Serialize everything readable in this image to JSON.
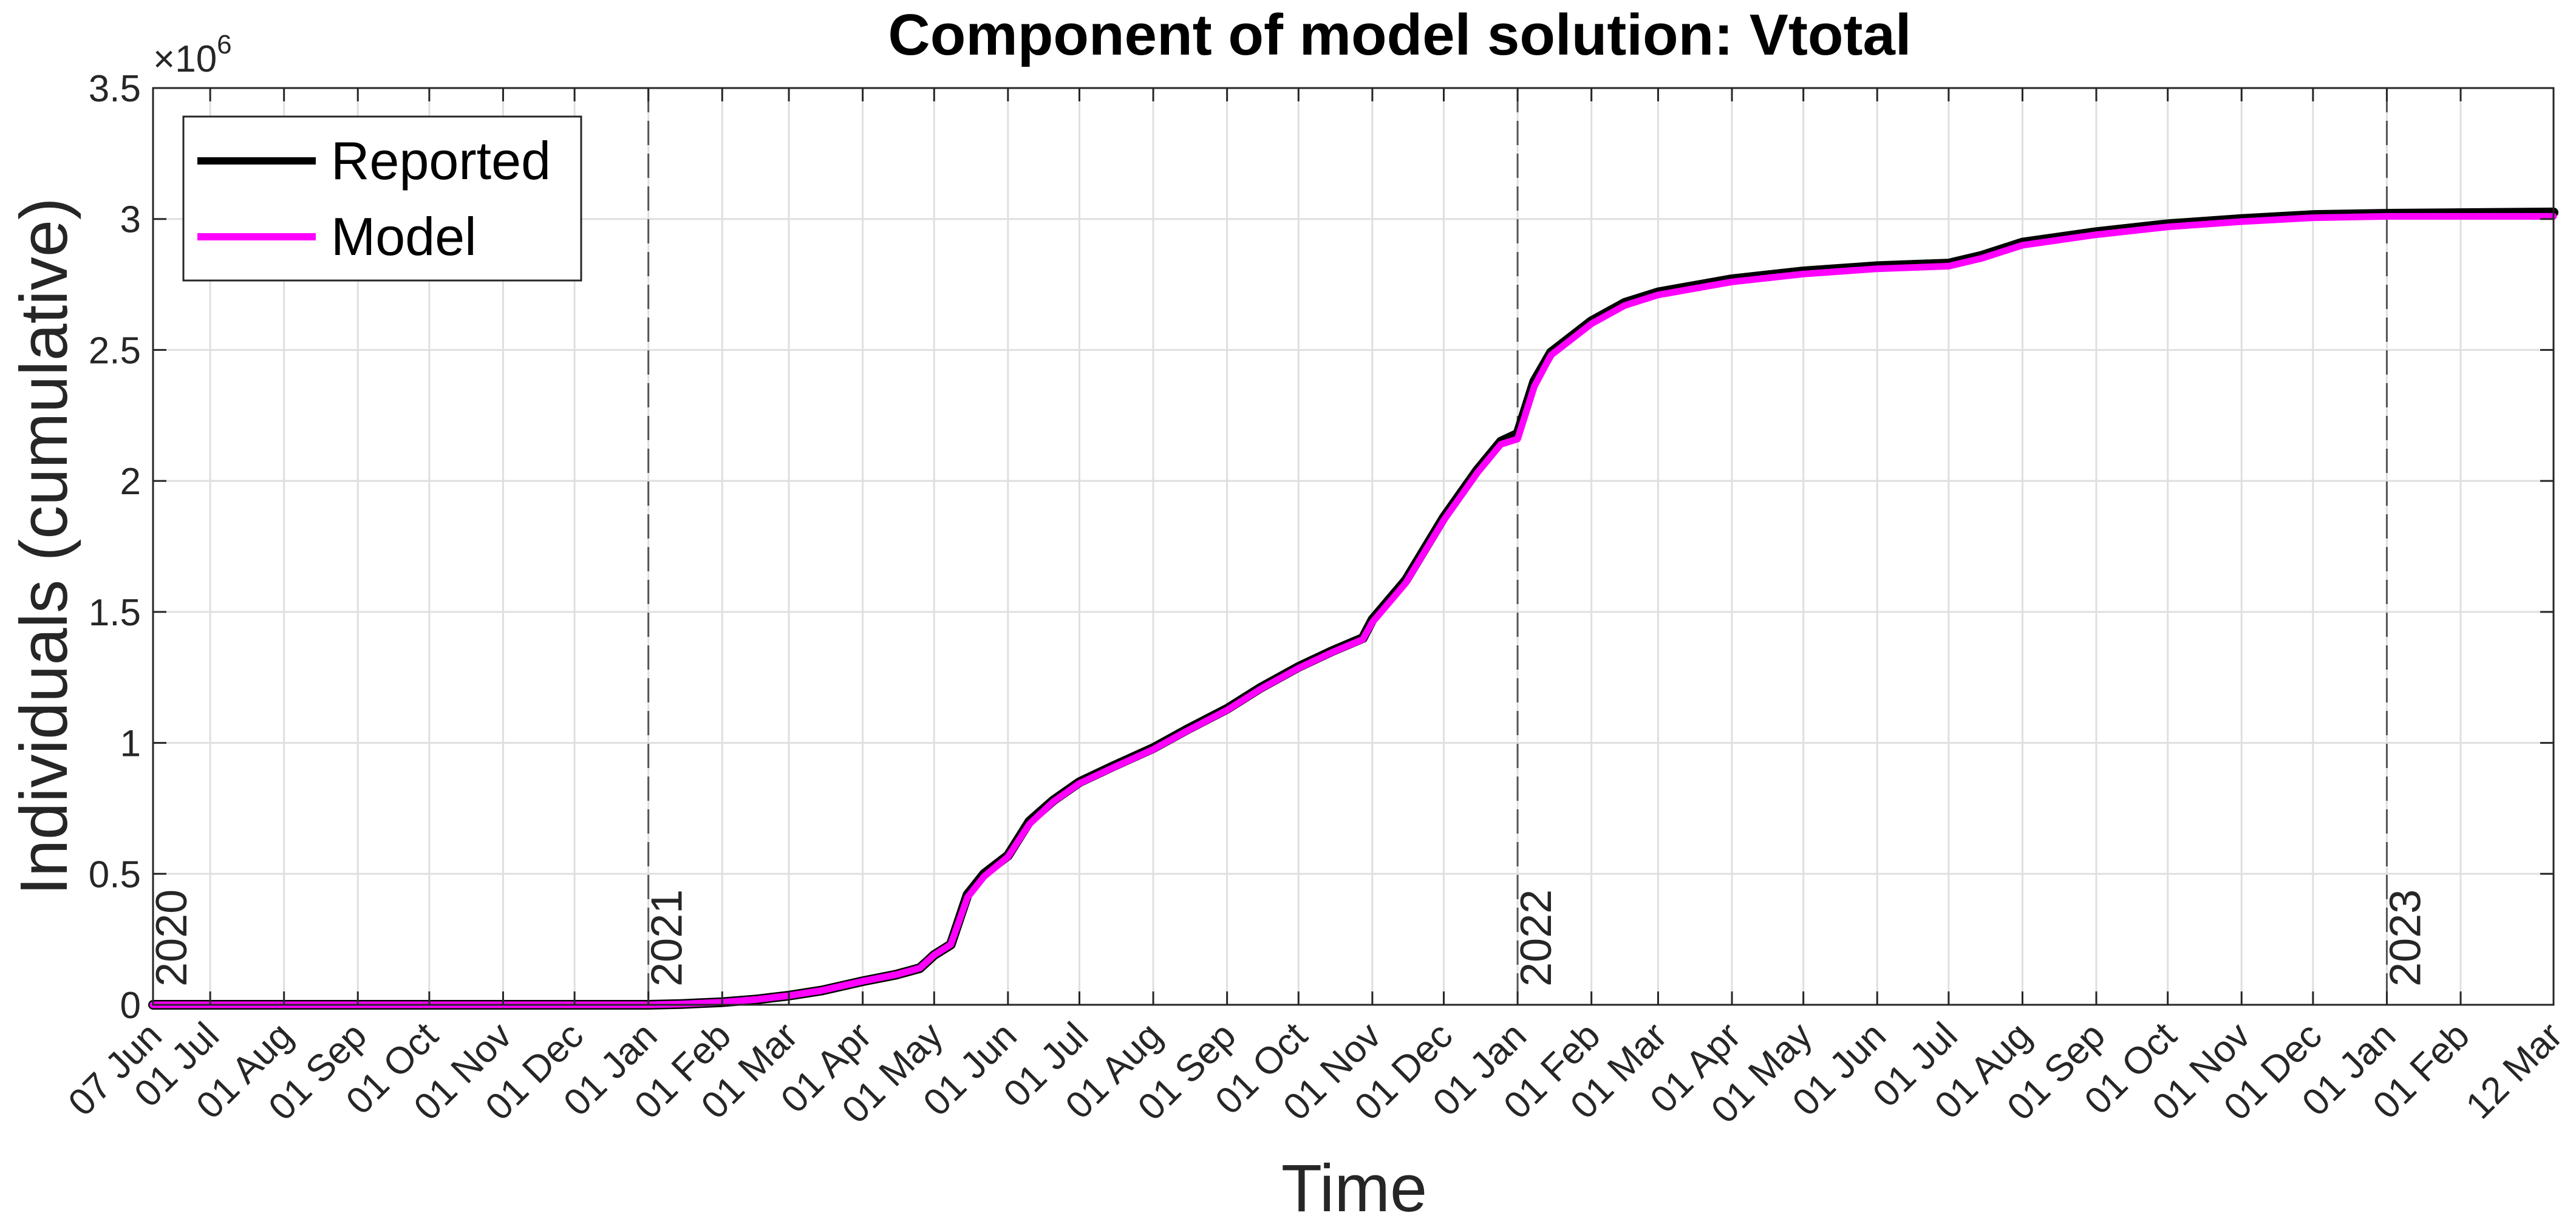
{
  "chart_data": {
    "type": "line",
    "title": "Component of model solution: Vtotal",
    "xlabel": "Time",
    "ylabel": "Individuals (cumulative)",
    "y_exponent_label": "×10",
    "y_exponent_power": "6",
    "y_multiplier": 1000000,
    "xlim": [
      "2020-06-07",
      "2023-03-12"
    ],
    "ylim": [
      0,
      3.5
    ],
    "grid": true,
    "legend_location": "top-left",
    "x_ticks": [
      {
        "date": "2020-06-07",
        "label": "07 Jun"
      },
      {
        "date": "2020-07-01",
        "label": "01 Jul"
      },
      {
        "date": "2020-08-01",
        "label": "01 Aug"
      },
      {
        "date": "2020-09-01",
        "label": "01 Sep"
      },
      {
        "date": "2020-10-01",
        "label": "01 Oct"
      },
      {
        "date": "2020-11-01",
        "label": "01 Nov"
      },
      {
        "date": "2020-12-01",
        "label": "01 Dec"
      },
      {
        "date": "2021-01-01",
        "label": "01 Jan"
      },
      {
        "date": "2021-02-01",
        "label": "01 Feb"
      },
      {
        "date": "2021-03-01",
        "label": "01 Mar"
      },
      {
        "date": "2021-04-01",
        "label": "01 Apr"
      },
      {
        "date": "2021-05-01",
        "label": "01 May"
      },
      {
        "date": "2021-06-01",
        "label": "01 Jun"
      },
      {
        "date": "2021-07-01",
        "label": "01 Jul"
      },
      {
        "date": "2021-08-01",
        "label": "01 Aug"
      },
      {
        "date": "2021-09-01",
        "label": "01 Sep"
      },
      {
        "date": "2021-10-01",
        "label": "01 Oct"
      },
      {
        "date": "2021-11-01",
        "label": "01 Nov"
      },
      {
        "date": "2021-12-01",
        "label": "01 Dec"
      },
      {
        "date": "2022-01-01",
        "label": "01 Jan"
      },
      {
        "date": "2022-02-01",
        "label": "01 Feb"
      },
      {
        "date": "2022-03-01",
        "label": "01 Mar"
      },
      {
        "date": "2022-04-01",
        "label": "01 Apr"
      },
      {
        "date": "2022-05-01",
        "label": "01 May"
      },
      {
        "date": "2022-06-01",
        "label": "01 Jun"
      },
      {
        "date": "2022-07-01",
        "label": "01 Jul"
      },
      {
        "date": "2022-08-01",
        "label": "01 Aug"
      },
      {
        "date": "2022-09-01",
        "label": "01 Sep"
      },
      {
        "date": "2022-10-01",
        "label": "01 Oct"
      },
      {
        "date": "2022-11-01",
        "label": "01 Nov"
      },
      {
        "date": "2022-12-01",
        "label": "01 Dec"
      },
      {
        "date": "2023-01-01",
        "label": "01 Jan"
      },
      {
        "date": "2023-02-01",
        "label": "01 Feb"
      },
      {
        "date": "2023-03-12",
        "label": "12 Mar"
      }
    ],
    "y_ticks": [
      {
        "value": 0,
        "label": "0"
      },
      {
        "value": 0.5,
        "label": "0.5"
      },
      {
        "value": 1,
        "label": "1"
      },
      {
        "value": 1.5,
        "label": "1.5"
      },
      {
        "value": 2,
        "label": "2"
      },
      {
        "value": 2.5,
        "label": "2.5"
      },
      {
        "value": 3,
        "label": "3"
      },
      {
        "value": 3.5,
        "label": "3.5"
      }
    ],
    "year_markers": [
      {
        "date": "2020-06-07",
        "label": "2020",
        "line": false
      },
      {
        "date": "2021-01-01",
        "label": "2021",
        "line": true
      },
      {
        "date": "2022-01-01",
        "label": "2022",
        "line": true
      },
      {
        "date": "2023-01-01",
        "label": "2023",
        "line": true
      }
    ],
    "series": [
      {
        "name": "Reported",
        "color": "#000000",
        "points": [
          [
            "2020-06-07",
            0
          ],
          [
            "2021-01-01",
            0
          ],
          [
            "2021-01-15",
            0.003
          ],
          [
            "2021-02-01",
            0.01
          ],
          [
            "2021-02-15",
            0.02
          ],
          [
            "2021-03-01",
            0.035
          ],
          [
            "2021-03-15",
            0.055
          ],
          [
            "2021-04-01",
            0.09
          ],
          [
            "2021-04-15",
            0.115
          ],
          [
            "2021-04-25",
            0.14
          ],
          [
            "2021-05-01",
            0.19
          ],
          [
            "2021-05-08",
            0.23
          ],
          [
            "2021-05-15",
            0.42
          ],
          [
            "2021-05-22",
            0.5
          ],
          [
            "2021-06-01",
            0.57
          ],
          [
            "2021-06-10",
            0.7
          ],
          [
            "2021-06-20",
            0.78
          ],
          [
            "2021-07-01",
            0.85
          ],
          [
            "2021-07-15",
            0.91
          ],
          [
            "2021-08-01",
            0.98
          ],
          [
            "2021-08-15",
            1.05
          ],
          [
            "2021-09-01",
            1.13
          ],
          [
            "2021-09-15",
            1.21
          ],
          [
            "2021-10-01",
            1.29
          ],
          [
            "2021-10-15",
            1.35
          ],
          [
            "2021-10-28",
            1.4
          ],
          [
            "2021-11-01",
            1.47
          ],
          [
            "2021-11-15",
            1.62
          ],
          [
            "2021-12-01",
            1.86
          ],
          [
            "2021-12-15",
            2.04
          ],
          [
            "2021-12-25",
            2.15
          ],
          [
            "2022-01-01",
            2.18
          ],
          [
            "2022-01-08",
            2.38
          ],
          [
            "2022-01-15",
            2.49
          ],
          [
            "2022-02-01",
            2.61
          ],
          [
            "2022-02-15",
            2.68
          ],
          [
            "2022-03-01",
            2.72
          ],
          [
            "2022-04-01",
            2.77
          ],
          [
            "2022-05-01",
            2.8
          ],
          [
            "2022-06-01",
            2.82
          ],
          [
            "2022-07-01",
            2.83
          ],
          [
            "2022-07-15",
            2.86
          ],
          [
            "2022-08-01",
            2.91
          ],
          [
            "2022-09-01",
            2.95
          ],
          [
            "2022-10-01",
            2.98
          ],
          [
            "2022-11-01",
            3.0
          ],
          [
            "2022-12-01",
            3.015
          ],
          [
            "2023-01-01",
            3.02
          ],
          [
            "2023-03-12",
            3.025
          ]
        ]
      },
      {
        "name": "Model",
        "color": "#ff00ff",
        "points": [
          [
            "2020-06-07",
            0
          ],
          [
            "2021-01-01",
            0
          ],
          [
            "2021-01-15",
            0.003
          ],
          [
            "2021-02-01",
            0.01
          ],
          [
            "2021-02-15",
            0.02
          ],
          [
            "2021-03-01",
            0.035
          ],
          [
            "2021-03-15",
            0.055
          ],
          [
            "2021-04-01",
            0.09
          ],
          [
            "2021-04-15",
            0.115
          ],
          [
            "2021-04-25",
            0.14
          ],
          [
            "2021-05-01",
            0.19
          ],
          [
            "2021-05-08",
            0.23
          ],
          [
            "2021-05-15",
            0.41
          ],
          [
            "2021-05-22",
            0.49
          ],
          [
            "2021-06-01",
            0.565
          ],
          [
            "2021-06-10",
            0.69
          ],
          [
            "2021-06-20",
            0.775
          ],
          [
            "2021-07-01",
            0.845
          ],
          [
            "2021-07-15",
            0.905
          ],
          [
            "2021-08-01",
            0.975
          ],
          [
            "2021-08-15",
            1.045
          ],
          [
            "2021-09-01",
            1.125
          ],
          [
            "2021-09-15",
            1.205
          ],
          [
            "2021-10-01",
            1.285
          ],
          [
            "2021-10-15",
            1.345
          ],
          [
            "2021-10-28",
            1.395
          ],
          [
            "2021-11-01",
            1.46
          ],
          [
            "2021-11-15",
            1.61
          ],
          [
            "2021-12-01",
            1.85
          ],
          [
            "2021-12-15",
            2.03
          ],
          [
            "2021-12-25",
            2.14
          ],
          [
            "2022-01-01",
            2.16
          ],
          [
            "2022-01-08",
            2.36
          ],
          [
            "2022-01-15",
            2.48
          ],
          [
            "2022-02-01",
            2.6
          ],
          [
            "2022-02-15",
            2.67
          ],
          [
            "2022-03-01",
            2.71
          ],
          [
            "2022-04-01",
            2.76
          ],
          [
            "2022-05-01",
            2.79
          ],
          [
            "2022-06-01",
            2.81
          ],
          [
            "2022-07-01",
            2.82
          ],
          [
            "2022-07-15",
            2.85
          ],
          [
            "2022-08-01",
            2.9
          ],
          [
            "2022-09-01",
            2.94
          ],
          [
            "2022-10-01",
            2.97
          ],
          [
            "2022-11-01",
            2.99
          ],
          [
            "2022-12-01",
            3.005
          ],
          [
            "2023-01-01",
            3.01
          ],
          [
            "2023-03-12",
            3.01
          ]
        ]
      }
    ]
  }
}
